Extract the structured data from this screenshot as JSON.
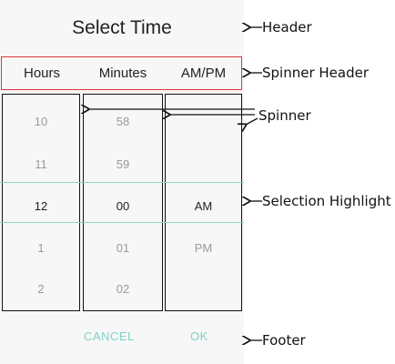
{
  "dialog": {
    "title": "Select Time",
    "spinner_headers": [
      "Hours",
      "Minutes",
      "AM/PM"
    ],
    "hours": [
      "10",
      "11",
      "12",
      "1",
      "2"
    ],
    "minutes": [
      "58",
      "59",
      "00",
      "01",
      "02"
    ],
    "ampm": [
      "AM",
      "PM"
    ],
    "footer": {
      "cancel": "CANCEL",
      "ok": "OK"
    }
  },
  "annotations": {
    "header": "Header",
    "spinner_header": "Spinner Header",
    "spinner": "Spinner",
    "selection_highlight": "Selection Highlight",
    "footer": "Footer"
  }
}
